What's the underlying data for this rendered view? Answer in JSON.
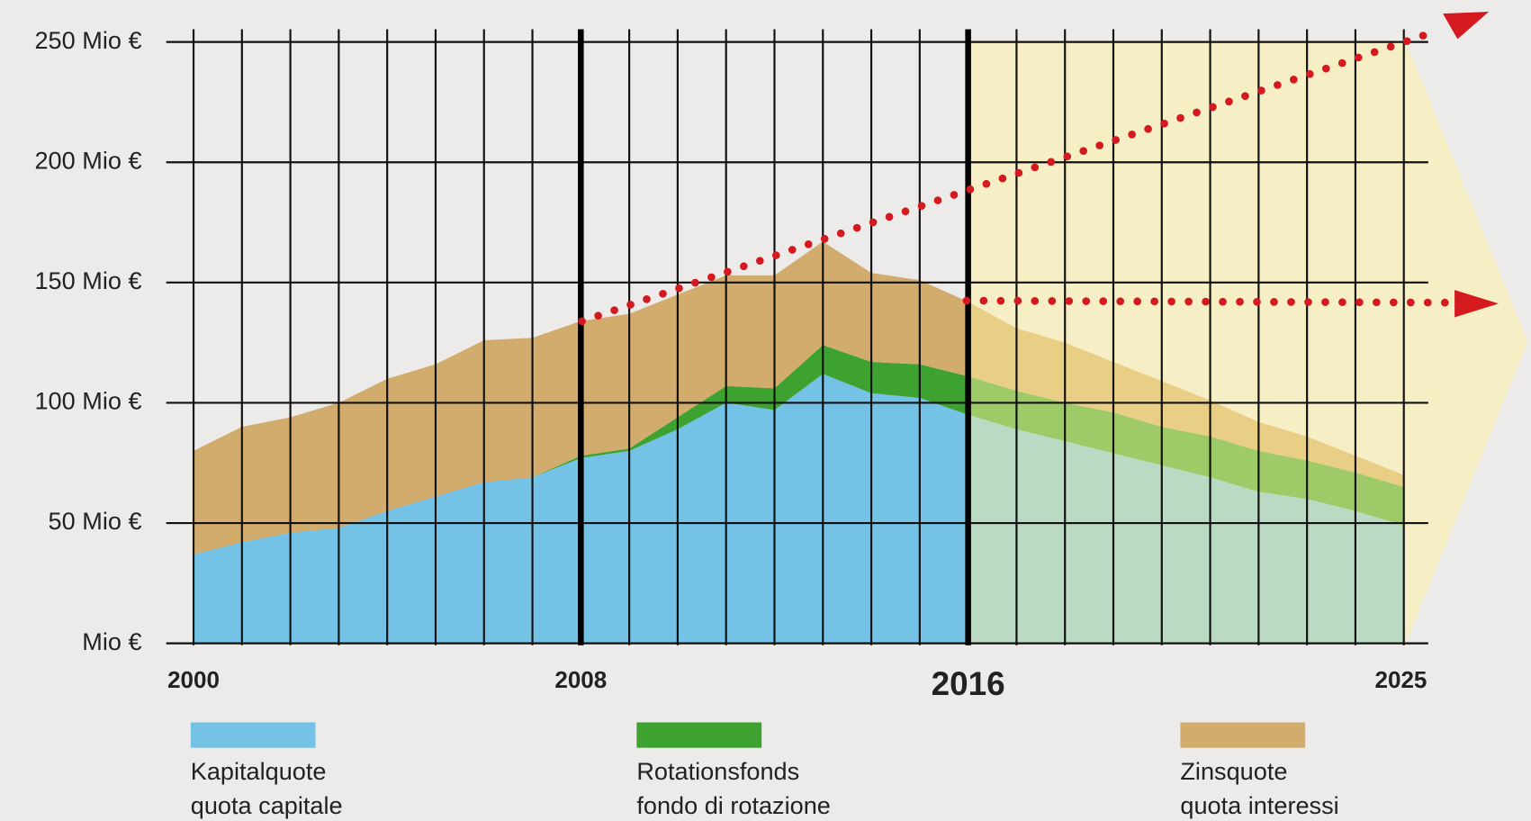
{
  "chart_data": {
    "type": "stacked_area",
    "x": [
      2000,
      2001,
      2002,
      2003,
      2004,
      2005,
      2006,
      2007,
      2008,
      2009,
      2010,
      2011,
      2012,
      2013,
      2014,
      2015,
      2016,
      2017,
      2018,
      2019,
      2020,
      2021,
      2022,
      2023,
      2024,
      2025
    ],
    "series": [
      {
        "name": "Kapitalquote",
        "subname": "quota capitale",
        "color": "#74c3e6",
        "values": [
          37,
          42,
          46,
          48,
          55,
          61,
          67,
          69,
          77,
          80,
          89,
          100,
          97,
          112,
          104,
          102,
          95,
          89,
          84,
          79,
          74,
          69,
          63,
          60,
          55,
          49
        ]
      },
      {
        "name": "Rotationsfonds",
        "subname": "fondo di rotazione",
        "color": "#3da230",
        "values": [
          0,
          0,
          0,
          0,
          0,
          0,
          0,
          0,
          1,
          1,
          5,
          7,
          9,
          12,
          13,
          14,
          16,
          16,
          16,
          17,
          16,
          17,
          17,
          16,
          16,
          16
        ]
      },
      {
        "name": "Zinsquote",
        "subname": "quota interessi",
        "color": "#d2ac6c",
        "values": [
          43,
          48,
          48,
          52,
          55,
          55,
          59,
          58,
          56,
          56,
          51,
          46,
          47,
          43,
          37,
          35,
          31,
          26,
          25,
          21,
          19,
          15,
          12,
          10,
          7,
          5
        ]
      }
    ],
    "xlim": [
      2000,
      2025
    ],
    "xticks": [
      2000,
      2008,
      2016,
      2025
    ],
    "ylim": [
      0,
      250
    ],
    "yticks": [
      {
        "value": 0,
        "label": "Mio €"
      },
      {
        "value": 50,
        "label": "50 Mio €"
      },
      {
        "value": 100,
        "label": "100 Mio €"
      },
      {
        "value": 150,
        "label": "150 Mio €"
      },
      {
        "value": 200,
        "label": "200 Mio €"
      },
      {
        "value": 250,
        "label": "250 Mio €"
      }
    ],
    "grid": true
  }
}
